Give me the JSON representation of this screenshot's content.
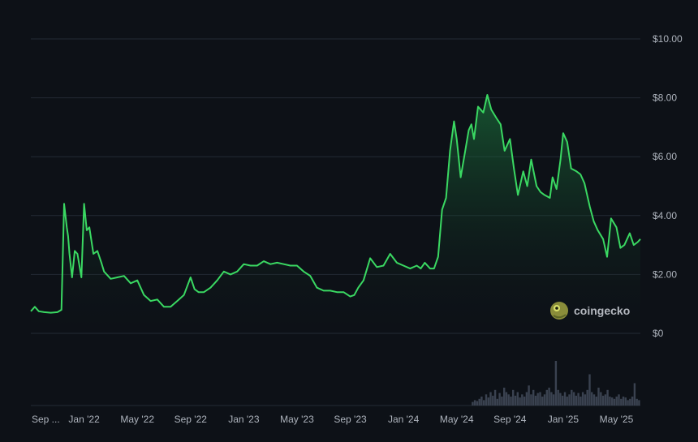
{
  "watermark": {
    "text": "coingecko",
    "logo_icon": "gecko-logo-icon"
  },
  "colors": {
    "background": "#0d1117",
    "line": "#3ad862",
    "fill_top": "#1f8a45",
    "grid": "#232a35",
    "volume": "#3a4250",
    "tick_text": "#aeb4bd"
  },
  "chart_data": {
    "type": "area",
    "title": "",
    "xlabel": "",
    "ylabel": "",
    "y_tick_labels": [
      "$0",
      "$2.00",
      "$4.00",
      "$6.00",
      "$8.00",
      "$10.00"
    ],
    "y_tick_values": [
      0,
      2,
      4,
      6,
      8,
      10
    ],
    "ylim": [
      0,
      10
    ],
    "y_axis_side": "right",
    "x_tick_labels": [
      "Sep ...",
      "Jan '22",
      "May '22",
      "Sep '22",
      "Jan '23",
      "May '23",
      "Sep '23",
      "Jan '24",
      "May '24",
      "Sep '24",
      "Jan '25",
      "May '25"
    ],
    "x_tick_months": [
      0,
      4,
      8,
      12,
      16,
      20,
      24,
      28,
      32,
      36,
      40,
      44
    ],
    "x_month_origin": "2021-09",
    "xlim_months": [
      0,
      45.8
    ],
    "grid": true,
    "legend": "none",
    "series": [
      {
        "x_months": [
          0,
          0.3,
          0.6,
          1.0,
          1.5,
          2.0,
          2.3,
          2.5,
          2.7,
          2.8,
          2.9,
          3.1,
          3.3,
          3.5,
          3.8,
          4.0,
          4.2,
          4.4,
          4.7,
          5.0,
          5.3,
          5.5,
          6.0,
          6.5,
          7.0,
          7.5,
          8.0,
          8.5,
          9.0,
          9.5,
          10.0,
          10.5,
          11.0,
          11.5,
          12.0,
          12.3,
          12.6,
          13.0,
          13.5,
          14.0,
          14.5,
          15.0,
          15.5,
          16.0,
          16.5,
          17.0,
          17.5,
          18.0,
          18.5,
          19.0,
          19.5,
          20.0,
          20.5,
          21.0,
          21.5,
          22.0,
          22.5,
          23.0,
          23.5,
          24.0,
          24.3,
          24.6,
          25.0,
          25.5,
          26.0,
          26.5,
          27.0,
          27.5,
          28.0,
          28.5,
          29.0,
          29.3,
          29.6,
          30.0,
          30.3,
          30.6,
          30.9,
          31.2,
          31.5,
          31.8,
          32.0,
          32.3,
          32.6,
          32.9,
          33.1,
          33.3,
          33.6,
          34.0,
          34.3,
          34.6,
          35.0,
          35.3,
          35.6,
          36.0,
          36.3,
          36.6,
          37.0,
          37.3,
          37.6,
          38.0,
          38.3,
          38.6,
          39.0,
          39.2,
          39.5,
          39.8,
          40.0,
          40.3,
          40.6,
          41.0,
          41.3,
          41.6,
          42.0,
          42.3,
          42.6,
          43.0,
          43.3,
          43.6,
          44.0,
          44.3,
          44.6,
          45.0,
          45.3,
          45.6,
          45.8
        ],
        "values": [
          0.75,
          0.9,
          0.75,
          0.72,
          0.7,
          0.72,
          0.8,
          4.4,
          3.6,
          3.3,
          2.7,
          1.9,
          2.8,
          2.7,
          1.9,
          4.4,
          3.5,
          3.6,
          2.7,
          2.8,
          2.4,
          2.1,
          1.85,
          1.9,
          1.95,
          1.7,
          1.8,
          1.3,
          1.1,
          1.15,
          0.9,
          0.9,
          1.1,
          1.3,
          1.9,
          1.5,
          1.4,
          1.4,
          1.55,
          1.8,
          2.1,
          2.0,
          2.1,
          2.35,
          2.3,
          2.3,
          2.45,
          2.35,
          2.4,
          2.35,
          2.3,
          2.3,
          2.1,
          1.95,
          1.55,
          1.45,
          1.45,
          1.4,
          1.4,
          1.25,
          1.3,
          1.55,
          1.8,
          2.55,
          2.25,
          2.3,
          2.7,
          2.4,
          2.3,
          2.2,
          2.3,
          2.2,
          2.4,
          2.2,
          2.2,
          2.6,
          4.2,
          4.6,
          6.2,
          7.2,
          6.6,
          5.3,
          6.1,
          6.9,
          7.1,
          6.6,
          7.7,
          7.5,
          8.1,
          7.6,
          7.3,
          7.1,
          6.2,
          6.6,
          5.6,
          4.7,
          5.5,
          5.0,
          5.9,
          5.0,
          4.8,
          4.7,
          4.6,
          5.3,
          4.9,
          5.9,
          6.8,
          6.5,
          5.6,
          5.5,
          5.4,
          5.1,
          4.3,
          3.8,
          3.5,
          3.2,
          2.6,
          3.9,
          3.6,
          2.9,
          3.0,
          3.4,
          3.0,
          3.1,
          3.2
        ]
      }
    ],
    "volume_values": [
      0,
      0,
      0,
      0,
      0,
      0,
      0,
      0,
      0,
      0,
      0,
      0,
      0,
      0,
      0,
      0,
      0,
      0,
      0,
      0,
      0,
      0,
      0,
      0,
      0,
      0,
      0,
      0,
      0,
      0,
      0,
      0,
      0,
      0,
      0,
      0,
      0,
      0,
      0,
      0,
      0,
      0,
      0,
      0,
      0,
      0,
      0,
      0,
      0,
      0,
      0,
      0,
      0,
      0,
      0,
      0,
      0,
      0,
      0,
      0,
      0,
      0,
      0,
      0,
      0,
      0,
      0,
      0,
      0,
      0,
      0,
      0,
      0,
      0,
      0,
      0,
      0,
      0,
      0,
      0,
      0,
      0,
      0,
      0,
      0,
      0,
      0,
      0,
      0,
      0,
      0,
      0,
      0,
      0,
      0,
      0,
      0,
      0,
      0,
      0,
      0,
      0,
      0,
      0,
      0,
      0,
      0,
      0,
      0,
      0,
      0,
      0,
      0,
      0,
      0,
      0,
      0,
      0,
      0,
      0,
      0,
      0,
      0,
      0,
      0,
      0,
      0,
      0,
      0,
      0,
      0,
      0,
      0,
      0,
      0,
      0,
      0,
      0,
      0,
      0,
      0,
      0,
      0,
      0,
      0,
      0,
      0,
      0,
      0,
      0,
      0,
      0,
      0,
      0,
      0,
      0,
      0,
      0,
      0,
      0,
      0,
      0,
      0,
      0,
      0,
      0,
      0,
      0,
      0,
      0,
      0,
      0,
      0,
      0,
      0,
      0,
      0,
      0,
      0,
      0,
      0,
      0,
      0,
      0,
      0,
      0,
      0,
      0,
      0,
      0,
      0,
      0,
      0,
      0,
      0,
      0,
      0.08,
      0.12,
      0.1,
      0.15,
      0.2,
      0.12,
      0.25,
      0.18,
      0.3,
      0.22,
      0.35,
      0.15,
      0.28,
      0.2,
      0.4,
      0.3,
      0.25,
      0.2,
      0.35,
      0.22,
      0.3,
      0.18,
      0.25,
      0.2,
      0.3,
      0.45,
      0.25,
      0.35,
      0.22,
      0.28,
      0.3,
      0.2,
      0.25,
      0.35,
      0.4,
      0.3,
      0.25,
      1.0,
      0.35,
      0.28,
      0.22,
      0.3,
      0.2,
      0.25,
      0.35,
      0.3,
      0.22,
      0.28,
      0.2,
      0.3,
      0.25,
      0.35,
      0.7,
      0.3,
      0.25,
      0.2,
      0.4,
      0.3,
      0.22,
      0.25,
      0.35,
      0.2,
      0.18,
      0.15,
      0.2,
      0.25,
      0.15,
      0.2,
      0.18,
      0.12,
      0.15,
      0.2,
      0.5,
      0.15,
      0.12
    ]
  }
}
